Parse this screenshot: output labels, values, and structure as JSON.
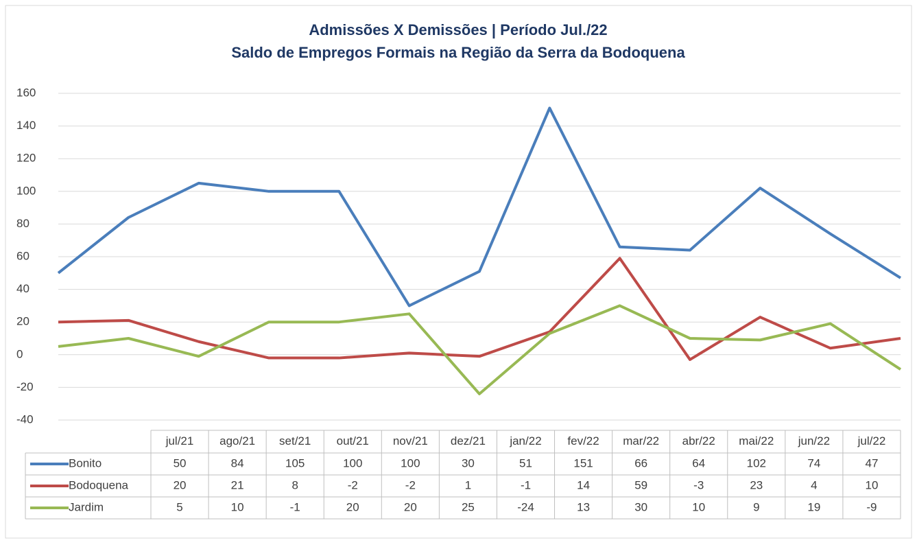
{
  "chart_data": {
    "type": "line",
    "title": "Admissões X Demissões  | Período Jul./22",
    "subtitle": "Saldo de Empregos Formais na Região da Serra da Bodoquena",
    "categories": [
      "jul/21",
      "ago/21",
      "set/21",
      "out/21",
      "nov/21",
      "dez/21",
      "jan/22",
      "fev/22",
      "mar/22",
      "abr/22",
      "mai/22",
      "jun/22",
      "jul/22"
    ],
    "series": [
      {
        "name": "Bonito",
        "color": "#4a7ebb",
        "values": [
          50,
          84,
          105,
          100,
          100,
          30,
          51,
          151,
          66,
          64,
          102,
          74,
          47
        ]
      },
      {
        "name": "Bodoquena",
        "color": "#be4b48",
        "values": [
          20,
          21,
          8,
          -2,
          -2,
          1,
          -1,
          14,
          59,
          -3,
          23,
          4,
          10
        ]
      },
      {
        "name": "Jardim",
        "color": "#98b954",
        "values": [
          5,
          10,
          -1,
          20,
          20,
          25,
          -24,
          13,
          30,
          10,
          9,
          19,
          -9
        ]
      }
    ],
    "ylim": [
      -40,
      160
    ],
    "yticks": [
      -40,
      -20,
      0,
      20,
      40,
      60,
      80,
      100,
      120,
      140,
      160
    ],
    "grid": true,
    "data_table": true
  }
}
